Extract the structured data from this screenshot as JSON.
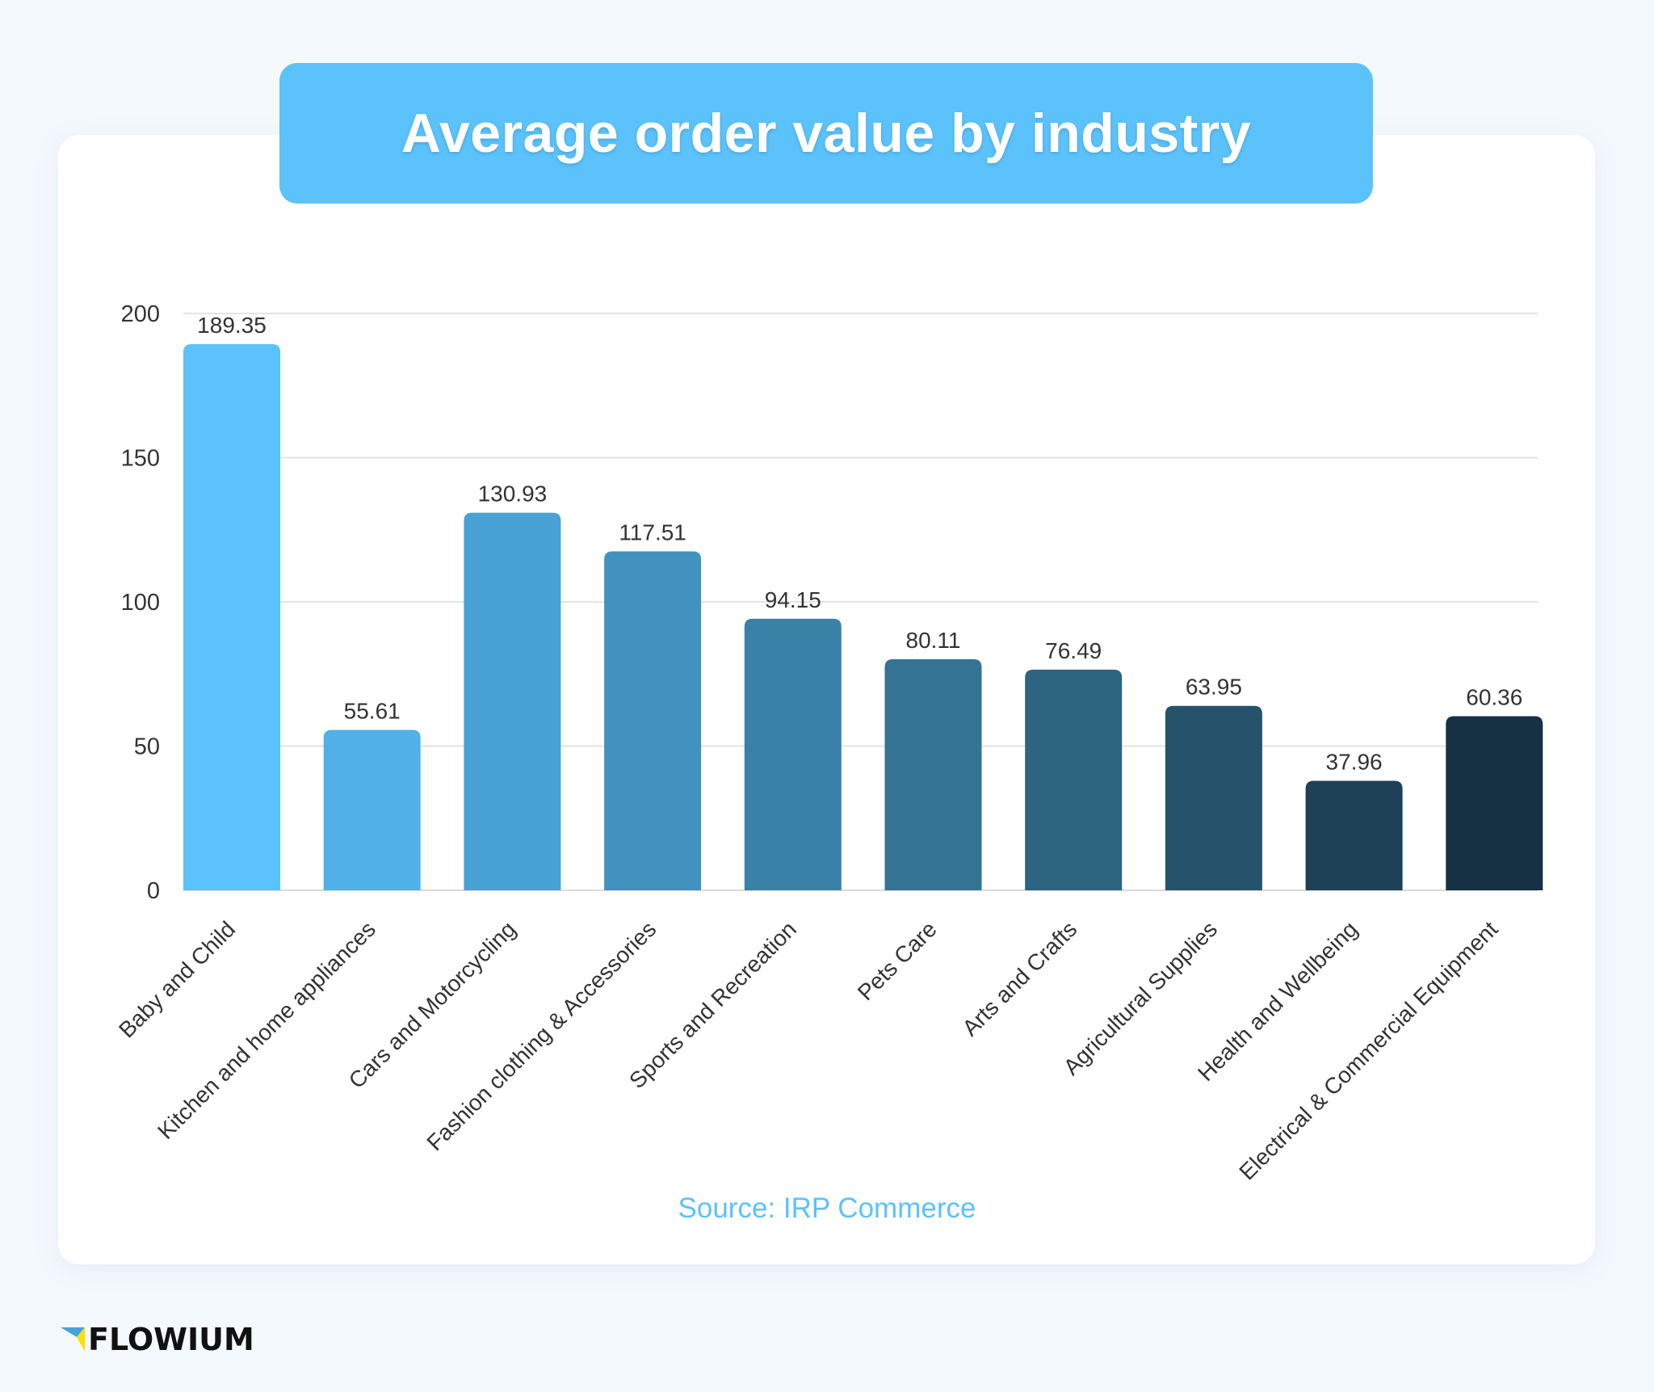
{
  "chart_data": {
    "type": "bar",
    "title": "Average order value by industry",
    "categories": [
      "Baby and Child",
      "Kitchen and home appliances",
      "Cars and Motorcycling",
      "Fashion clothing & Accessories",
      "Sports and Recreation",
      "Pets Care",
      "Arts and Crafts",
      "Agricultural Supplies",
      "Health and Wellbeing",
      "Electrical & Commercial Equipment"
    ],
    "values": [
      189.35,
      55.61,
      130.93,
      117.51,
      94.15,
      80.11,
      76.49,
      63.95,
      37.96,
      60.36
    ],
    "data_labels": [
      "189.35",
      "55.61",
      "130.93",
      "117.51",
      "94.15",
      "80.11",
      "76.49",
      "63.95",
      "37.96",
      "60.36"
    ],
    "bar_colors": [
      "#5bc2fc",
      "#4fb1e7",
      "#49a2d5",
      "#4292c0",
      "#3a81a8",
      "#347393",
      "#2d6480",
      "#26526c",
      "#1e4158",
      "#163044"
    ],
    "yticks": [
      "0",
      "50",
      "100",
      "150",
      "200"
    ],
    "ylim": [
      0,
      200
    ],
    "grid": true,
    "xlabel": "",
    "ylabel": ""
  },
  "source": "Source: IRP Commerce",
  "logo": {
    "text": "FLOWIUM",
    "colors": [
      "#45a3dc",
      "#ffe000"
    ]
  }
}
